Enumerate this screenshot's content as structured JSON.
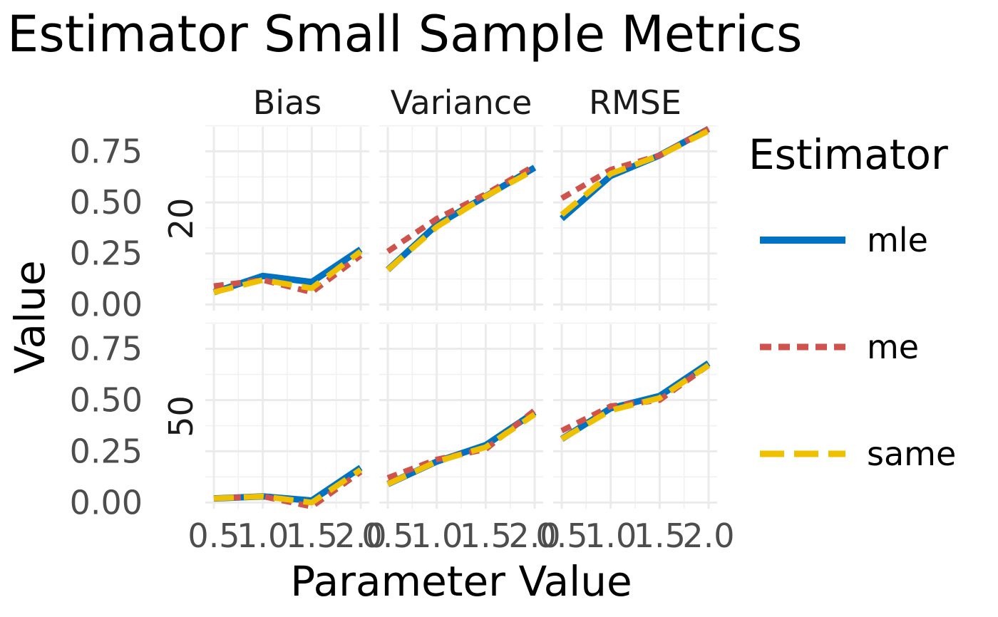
{
  "chart_data": {
    "type": "line",
    "title": "Estimator Small Sample Metrics",
    "xlabel": "Parameter Value",
    "ylabel": "Value",
    "facet_columns": [
      "Bias",
      "Variance",
      "RMSE"
    ],
    "facet_rows": [
      "20",
      "50"
    ],
    "x": [
      0.5,
      1.0,
      1.5,
      2.0
    ],
    "x_tick_labels": [
      "0.5",
      "1.0",
      "1.5",
      "2.0"
    ],
    "y_tick_labels": [
      "0.00",
      "0.25",
      "0.50",
      "0.75"
    ],
    "y_ticks": [
      0,
      0.25,
      0.5,
      0.75
    ],
    "xlim": [
      0.5,
      2.0
    ],
    "ylim": [
      -0.03,
      0.87
    ],
    "grid": true,
    "legend": {
      "title": "Estimator",
      "placement": "right",
      "entries": [
        {
          "name": "mle",
          "color": "#0072C2",
          "style": "solid"
        },
        {
          "name": "me",
          "color": "#CD534C",
          "style": "dotted"
        },
        {
          "name": "same",
          "color": "#EFC000",
          "style": "dashed"
        }
      ]
    },
    "panels": [
      {
        "row": "20",
        "col": "Bias",
        "series": [
          {
            "name": "mle",
            "values": [
              0.06,
              0.14,
              0.11,
              0.27
            ]
          },
          {
            "name": "me",
            "values": [
              0.09,
              0.12,
              0.06,
              0.24
            ]
          },
          {
            "name": "same",
            "values": [
              0.06,
              0.12,
              0.08,
              0.26
            ]
          }
        ]
      },
      {
        "row": "20",
        "col": "Variance",
        "series": [
          {
            "name": "mle",
            "values": [
              0.17,
              0.39,
              0.53,
              0.67
            ]
          },
          {
            "name": "me",
            "values": [
              0.26,
              0.42,
              0.54,
              0.68
            ]
          },
          {
            "name": "same",
            "values": [
              0.17,
              0.38,
              0.53,
              0.66
            ]
          }
        ]
      },
      {
        "row": "20",
        "col": "RMSE",
        "series": [
          {
            "name": "mle",
            "values": [
              0.42,
              0.63,
              0.73,
              0.86
            ]
          },
          {
            "name": "me",
            "values": [
              0.52,
              0.66,
              0.73,
              0.86
            ]
          },
          {
            "name": "same",
            "values": [
              0.44,
              0.64,
              0.73,
              0.85
            ]
          }
        ]
      },
      {
        "row": "50",
        "col": "Bias",
        "series": [
          {
            "name": "mle",
            "values": [
              0.02,
              0.03,
              0.01,
              0.17
            ]
          },
          {
            "name": "me",
            "values": [
              0.02,
              0.03,
              -0.02,
              0.15
            ]
          },
          {
            "name": "same",
            "values": [
              0.02,
              0.03,
              0.0,
              0.16
            ]
          }
        ]
      },
      {
        "row": "50",
        "col": "Variance",
        "series": [
          {
            "name": "mle",
            "values": [
              0.09,
              0.2,
              0.28,
              0.44
            ]
          },
          {
            "name": "me",
            "values": [
              0.12,
              0.21,
              0.26,
              0.45
            ]
          },
          {
            "name": "same",
            "values": [
              0.09,
              0.2,
              0.27,
              0.43
            ]
          }
        ]
      },
      {
        "row": "50",
        "col": "RMSE",
        "series": [
          {
            "name": "mle",
            "values": [
              0.31,
              0.46,
              0.52,
              0.68
            ]
          },
          {
            "name": "me",
            "values": [
              0.35,
              0.47,
              0.5,
              0.67
            ]
          },
          {
            "name": "same",
            "values": [
              0.31,
              0.45,
              0.51,
              0.67
            ]
          }
        ]
      }
    ]
  }
}
